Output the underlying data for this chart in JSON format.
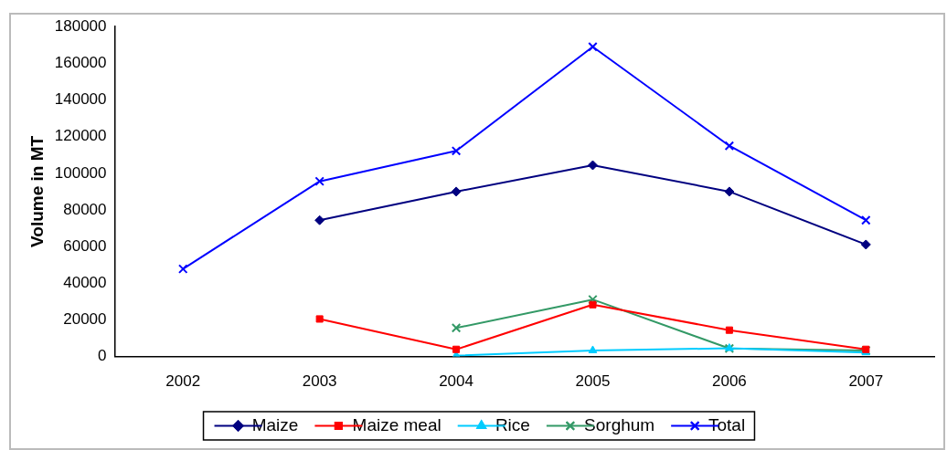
{
  "chart_data": {
    "type": "line",
    "ylabel": "Volume in MT",
    "categories": [
      "2002",
      "2003",
      "2004",
      "2005",
      "2006",
      "2007"
    ],
    "ylim": [
      0,
      180000
    ],
    "yticks": [
      0,
      20000,
      40000,
      60000,
      80000,
      100000,
      120000,
      140000,
      160000,
      180000
    ],
    "grid": false,
    "legend": "bottom",
    "line_style": "solid",
    "series": [
      {
        "name": "Maize",
        "color": "#000080",
        "marker": "diamond",
        "values": [
          null,
          74400,
          90000,
          104400,
          90000,
          61100
        ]
      },
      {
        "name": "Maize meal",
        "color": "#ff0000",
        "marker": "square",
        "values": [
          null,
          20500,
          3900,
          28300,
          14400,
          3900
        ]
      },
      {
        "name": "Rice",
        "color": "#00ccff",
        "marker": "triangle",
        "values": [
          null,
          null,
          500,
          3300,
          4500,
          2200
        ]
      },
      {
        "name": "Sorghum",
        "color": "#339966",
        "marker": "cross",
        "values": [
          null,
          null,
          15600,
          31100,
          4400,
          3300
        ]
      },
      {
        "name": "Total",
        "color": "#0000ff",
        "marker": "cross",
        "values": [
          47800,
          95600,
          112200,
          169000,
          115000,
          74400
        ]
      }
    ]
  }
}
